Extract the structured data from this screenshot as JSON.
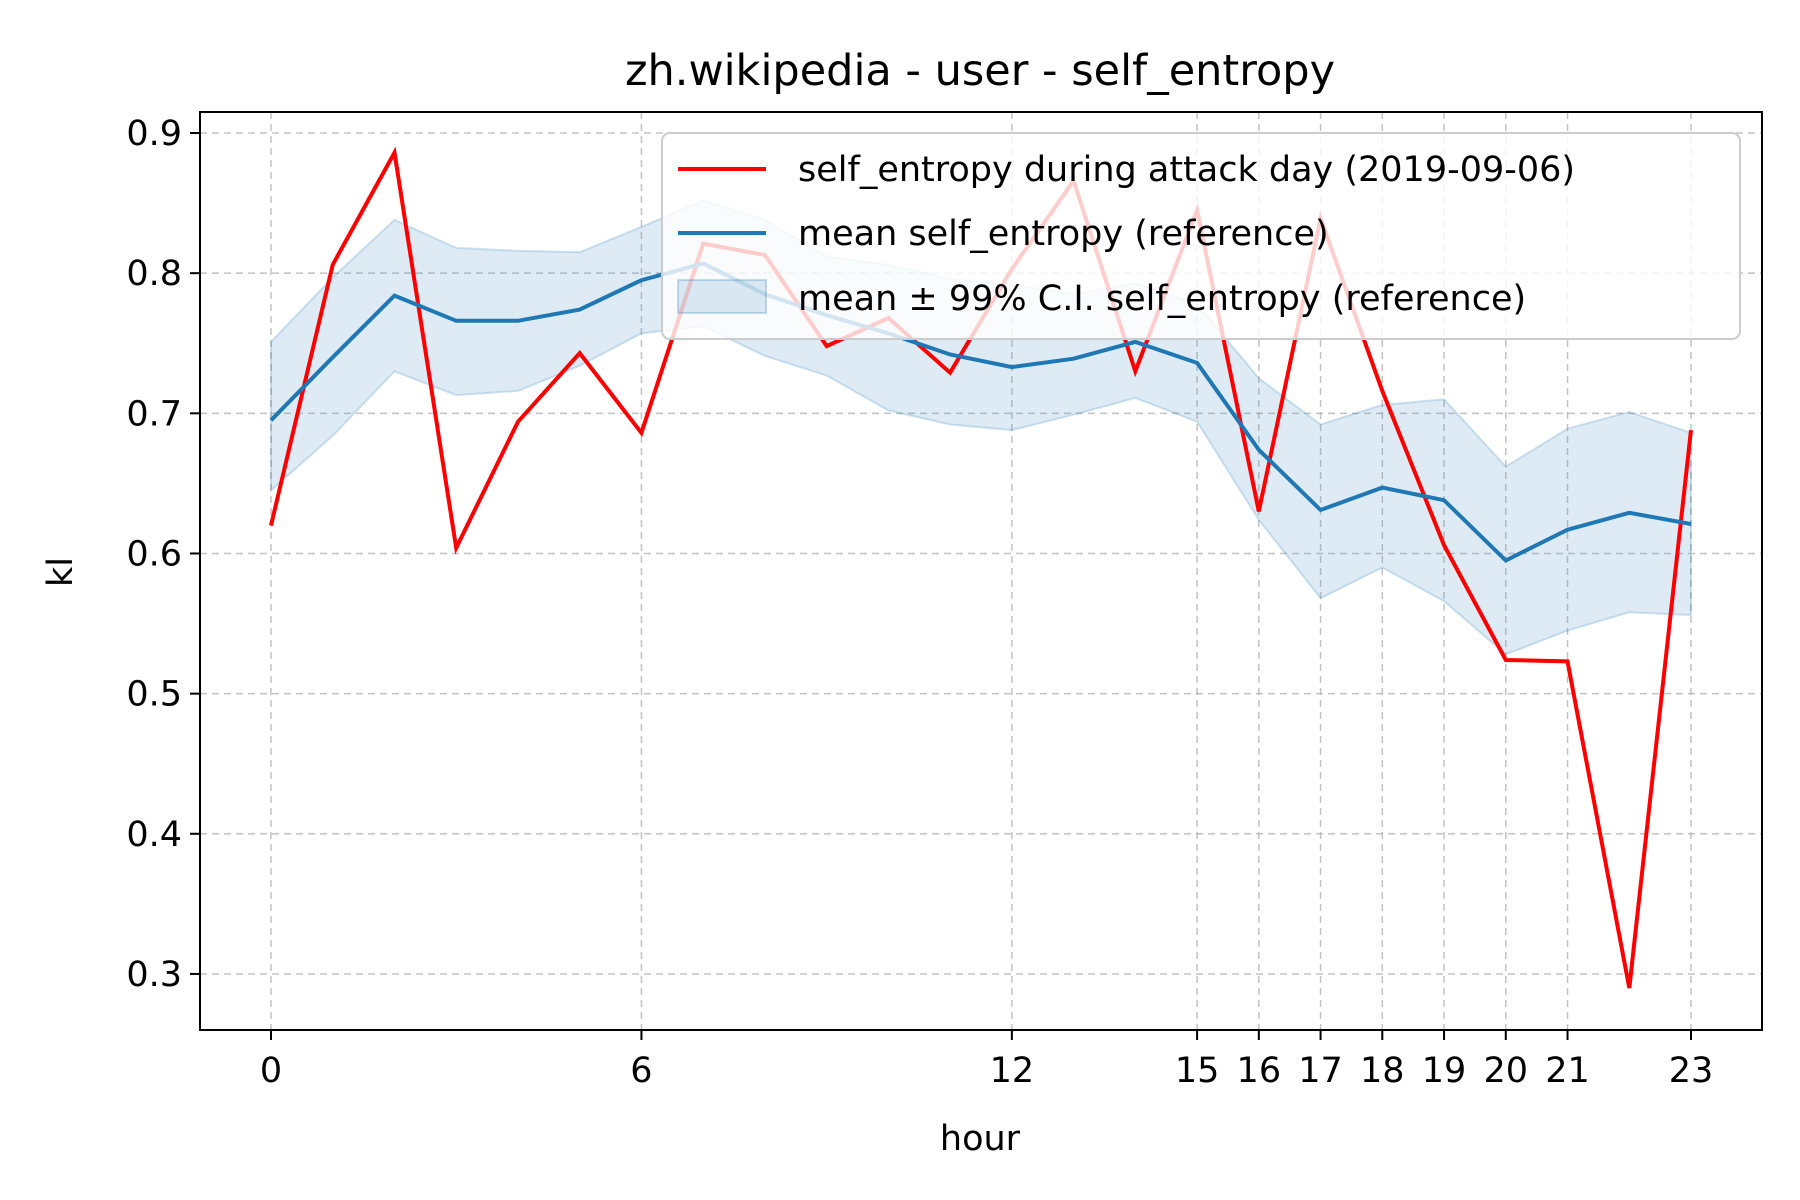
{
  "chart_data": {
    "type": "line",
    "title": "zh.wikipedia - user - self_entropy",
    "xlabel": "hour",
    "ylabel": "kl",
    "xlim": [
      -1.15,
      24.15
    ],
    "ylim": [
      0.26,
      0.915
    ],
    "xticks": [
      0,
      6,
      12,
      15,
      16,
      17,
      18,
      19,
      20,
      21,
      23
    ],
    "yticks": [
      0.3,
      0.4,
      0.5,
      0.6,
      0.7,
      0.8,
      0.9
    ],
    "ytick_labels": [
      "0.3",
      "0.4",
      "0.5",
      "0.6",
      "0.7",
      "0.8",
      "0.9"
    ],
    "grid": true,
    "legend_position": "top-right",
    "x": [
      0,
      1,
      2,
      3,
      4,
      5,
      6,
      7,
      8,
      9,
      10,
      11,
      12,
      13,
      14,
      15,
      16,
      17,
      18,
      19,
      20,
      21,
      22,
      23
    ],
    "series": [
      {
        "name": "self_entropy during attack day (2019-09-06)",
        "color": "#ff0000",
        "values": [
          0.62,
          0.806,
          0.886,
          0.604,
          0.694,
          0.743,
          0.686,
          0.821,
          0.813,
          0.748,
          0.768,
          0.729,
          0.803,
          0.866,
          0.73,
          0.845,
          0.63,
          0.839,
          0.716,
          0.606,
          0.524,
          0.523,
          0.29,
          0.688
        ]
      },
      {
        "name": "mean self_entropy (reference)",
        "color": "#1f77b4",
        "values": [
          0.695,
          0.74,
          0.784,
          0.766,
          0.766,
          0.774,
          0.795,
          0.807,
          0.785,
          0.77,
          0.757,
          0.742,
          0.733,
          0.739,
          0.751,
          0.736,
          0.674,
          0.631,
          0.647,
          0.638,
          0.595,
          0.617,
          0.629,
          0.621
        ]
      }
    ],
    "band": {
      "name": "mean ± 99% C.I. self_entropy (reference)",
      "color": "#1f77b4",
      "lower": [
        0.645,
        0.684,
        0.73,
        0.713,
        0.716,
        0.734,
        0.757,
        0.762,
        0.741,
        0.727,
        0.702,
        0.692,
        0.688,
        0.699,
        0.711,
        0.694,
        0.624,
        0.568,
        0.59,
        0.566,
        0.528,
        0.545,
        0.558,
        0.556
      ],
      "upper": [
        0.751,
        0.797,
        0.838,
        0.818,
        0.816,
        0.815,
        0.833,
        0.852,
        0.838,
        0.812,
        0.806,
        0.796,
        0.792,
        0.785,
        0.793,
        0.778,
        0.725,
        0.692,
        0.706,
        0.71,
        0.662,
        0.689,
        0.701,
        0.686
      ]
    }
  }
}
